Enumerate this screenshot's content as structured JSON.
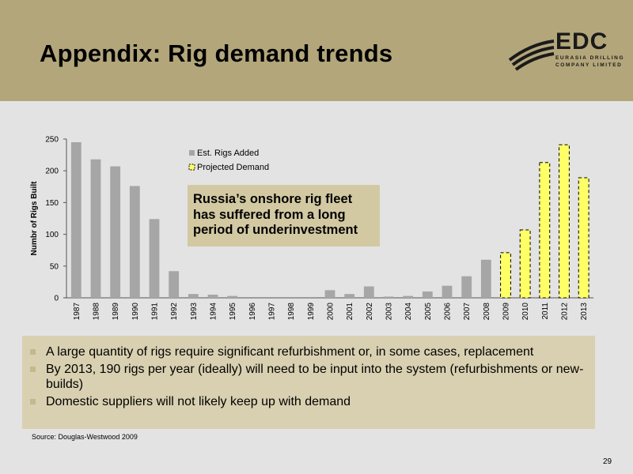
{
  "slide": {
    "title": "Appendix: Rig demand trends",
    "logo": {
      "word": "EDC",
      "line1": "EURASIA DRILLING",
      "line2": "COMPANY LIMITED"
    },
    "callout": "Russia’s onshore rig fleet has suffered from a long period of underinvestment",
    "bullets": [
      "A large quantity of rigs require significant refurbishment or, in some cases, replacement",
      "By 2013, 190 rigs per year (ideally) will need to be input into the system (refurbishments or new-builds)",
      "Domestic suppliers will not likely keep up with demand"
    ],
    "source": "Source: Douglas-Westwood 2009",
    "page_number": "29"
  },
  "colors": {
    "header": "#b3a67a",
    "bar_added": "#a6a6a6",
    "bar_projected": "#ffff66",
    "callout_bg": "#d2c9a3",
    "bullets_bg": "#d8d0b0"
  },
  "chart_data": {
    "type": "bar",
    "ylabel": "Numbr of Rigs Built",
    "xlabel": "",
    "ylim": [
      0,
      250
    ],
    "yticks": [
      0,
      50,
      100,
      150,
      200,
      250
    ],
    "legend_position": "top-center",
    "categories": [
      "1987",
      "1988",
      "1989",
      "1990",
      "1991",
      "1992",
      "1993",
      "1994",
      "1995",
      "1996",
      "1997",
      "1998",
      "1999",
      "2000",
      "2001",
      "2002",
      "2003",
      "2004",
      "2005",
      "2006",
      "2007",
      "2008",
      "2009",
      "2010",
      "2011",
      "2012",
      "2013"
    ],
    "series": [
      {
        "name": "Est. Rigs Added",
        "values": [
          245,
          218,
          207,
          176,
          124,
          42,
          6,
          5,
          3,
          0,
          0,
          0,
          0,
          12,
          6,
          18,
          2,
          3,
          10,
          19,
          34,
          60,
          null,
          null,
          null,
          null,
          null
        ]
      },
      {
        "name": "Projected Demand",
        "values": [
          null,
          null,
          null,
          null,
          null,
          null,
          null,
          null,
          null,
          null,
          null,
          null,
          null,
          null,
          null,
          null,
          null,
          null,
          null,
          null,
          null,
          null,
          71,
          107,
          213,
          241,
          189
        ]
      }
    ]
  }
}
